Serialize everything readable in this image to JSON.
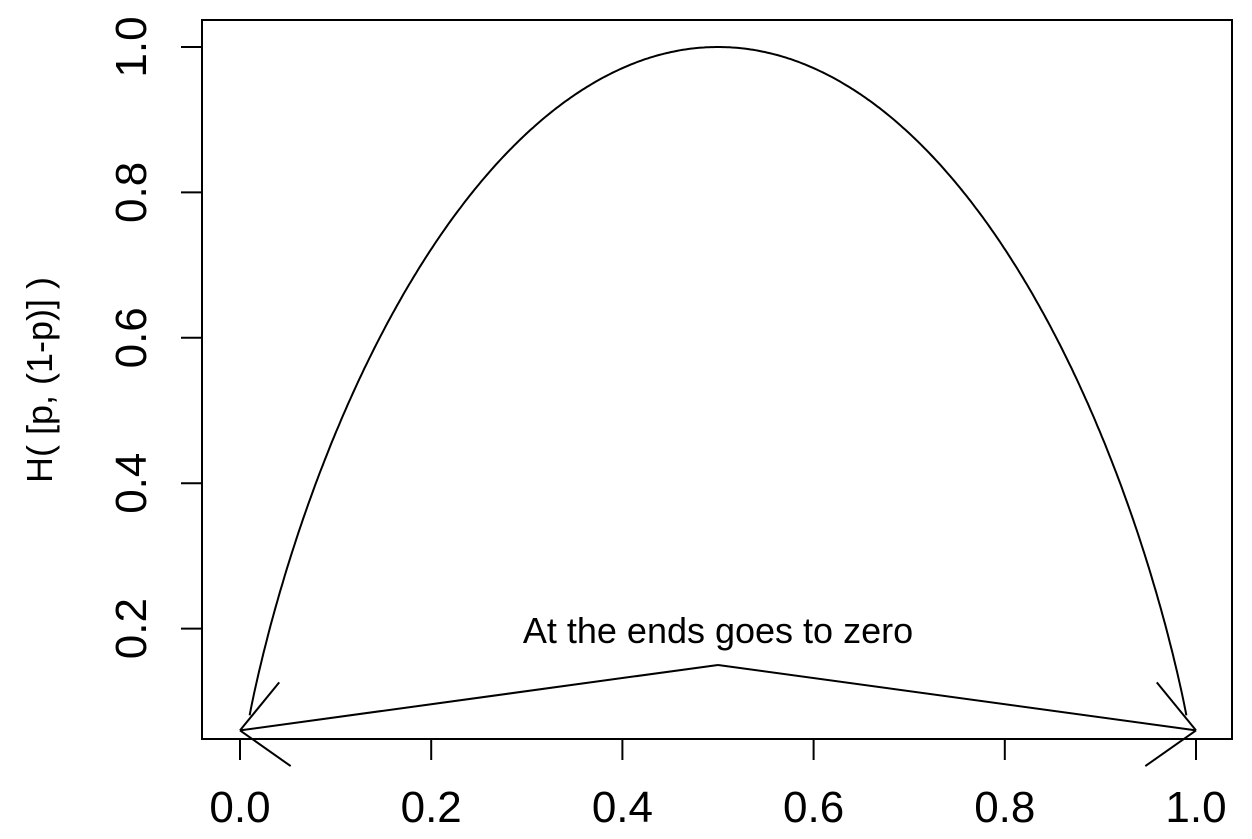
{
  "chart_data": {
    "type": "line",
    "title": "",
    "xlabel": "",
    "ylabel": "H( [p, (1-p)] )",
    "xlim": [
      0,
      1
    ],
    "ylim": [
      0.04,
      1.0
    ],
    "x_ticks": [
      "0.0",
      "0.2",
      "0.4",
      "0.6",
      "0.8",
      "1.0"
    ],
    "y_ticks": [
      "0.2",
      "0.4",
      "0.6",
      "0.8",
      "1.0"
    ],
    "series": [
      {
        "x": [
          0.01,
          0.02,
          0.05,
          0.1,
          0.15,
          0.2,
          0.25,
          0.3,
          0.35,
          0.4,
          0.45,
          0.5,
          0.55,
          0.6,
          0.65,
          0.7,
          0.75,
          0.8,
          0.85,
          0.9,
          0.95,
          0.98,
          0.99
        ],
        "values": [
          0.081,
          0.141,
          0.286,
          0.469,
          0.61,
          0.722,
          0.811,
          0.881,
          0.934,
          0.971,
          0.993,
          1.0,
          0.993,
          0.971,
          0.934,
          0.881,
          0.811,
          0.722,
          0.61,
          0.469,
          0.286,
          0.141,
          0.081
        ]
      }
    ],
    "annotation": {
      "text": "At the ends goes to zero",
      "label_x": 0.5,
      "label_y": 0.15,
      "arrow_targets": [
        [
          0.0,
          0.06
        ],
        [
          1.0,
          0.06
        ]
      ]
    },
    "grid": false,
    "legend": "none"
  }
}
